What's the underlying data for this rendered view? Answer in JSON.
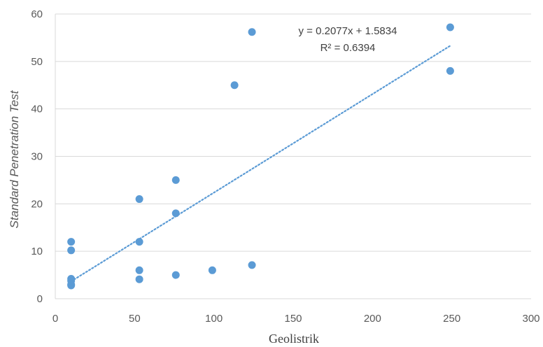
{
  "chart_data": {
    "type": "scatter",
    "xlabel": "Geolistrik",
    "ylabel": "Standard Penetration Test",
    "xlim": [
      0,
      300
    ],
    "ylim": [
      0,
      60
    ],
    "xticks": [
      0,
      50,
      100,
      150,
      200,
      250,
      300
    ],
    "yticks": [
      0,
      10,
      20,
      30,
      40,
      50,
      60
    ],
    "grid": "horizontal",
    "series": [
      {
        "points": [
          [
            10,
            12
          ],
          [
            10,
            10.2
          ],
          [
            10,
            4.2
          ],
          [
            10,
            3.8
          ],
          [
            10,
            3.0
          ],
          [
            10,
            2.8
          ],
          [
            53,
            21
          ],
          [
            53,
            12
          ],
          [
            53,
            6
          ],
          [
            53,
            4.1
          ],
          [
            76,
            25
          ],
          [
            76,
            18
          ],
          [
            76,
            5
          ],
          [
            99,
            6
          ],
          [
            113,
            45
          ],
          [
            124,
            56.2
          ],
          [
            124,
            7.1
          ],
          [
            249,
            57.2
          ],
          [
            249,
            48
          ]
        ],
        "color": "#5b9bd5"
      }
    ],
    "trendline": {
      "type": "linear",
      "slope": 0.2077,
      "intercept": 1.5834,
      "x_range": [
        10,
        249
      ],
      "color": "#5b9bd5",
      "style": "dotted"
    },
    "annotations": {
      "equation": "y = 0.2077x + 1.5834",
      "r_squared": "R² = 0.6394"
    }
  }
}
